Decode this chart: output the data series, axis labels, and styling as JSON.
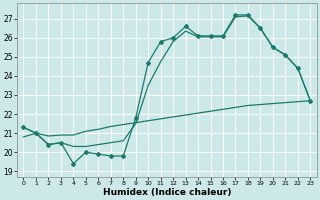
{
  "title": "",
  "xlabel": "Humidex (Indice chaleur)",
  "bg_color": "#cce8e8",
  "grid_color": "#ffffff",
  "line_color": "#1a7a6e",
  "xlim": [
    -0.5,
    23.5
  ],
  "ylim": [
    18.7,
    27.8
  ],
  "xticks": [
    0,
    1,
    2,
    3,
    4,
    5,
    6,
    7,
    8,
    9,
    10,
    11,
    12,
    13,
    14,
    15,
    16,
    17,
    18,
    19,
    20,
    21,
    22,
    23
  ],
  "yticks": [
    19,
    20,
    21,
    22,
    23,
    24,
    25,
    26,
    27
  ],
  "line1_x": [
    0,
    1,
    2,
    3,
    4,
    5,
    6,
    7,
    8,
    9,
    10,
    11,
    12,
    13,
    14,
    15,
    16,
    17,
    18,
    19,
    20,
    21,
    22,
    23
  ],
  "line1_y": [
    21.3,
    21.0,
    20.4,
    20.5,
    19.4,
    20.0,
    19.9,
    19.8,
    19.8,
    21.8,
    24.7,
    25.8,
    26.0,
    26.6,
    26.1,
    26.1,
    26.1,
    27.2,
    27.2,
    26.5,
    25.5,
    25.1,
    24.4,
    22.7
  ],
  "line2_x": [
    0,
    1,
    2,
    3,
    4,
    5,
    6,
    7,
    8,
    9,
    10,
    11,
    12,
    13,
    14,
    15,
    16,
    17,
    18,
    19,
    20,
    21,
    22,
    23
  ],
  "line2_y": [
    20.8,
    21.0,
    20.85,
    20.9,
    20.9,
    21.1,
    21.2,
    21.35,
    21.45,
    21.55,
    21.65,
    21.75,
    21.85,
    21.95,
    22.05,
    22.15,
    22.25,
    22.35,
    22.45,
    22.5,
    22.55,
    22.6,
    22.65,
    22.7
  ],
  "line3_x": [
    0,
    1,
    2,
    3,
    4,
    5,
    6,
    7,
    8,
    9,
    10,
    11,
    12,
    13,
    14,
    15,
    16,
    17,
    18,
    19,
    20,
    21,
    22,
    23
  ],
  "line3_y": [
    21.3,
    21.0,
    20.4,
    20.5,
    20.3,
    20.3,
    20.4,
    20.5,
    20.6,
    21.5,
    23.5,
    24.75,
    25.8,
    26.35,
    26.05,
    26.05,
    26.05,
    27.1,
    27.15,
    26.5,
    25.5,
    25.1,
    24.4,
    22.7
  ]
}
